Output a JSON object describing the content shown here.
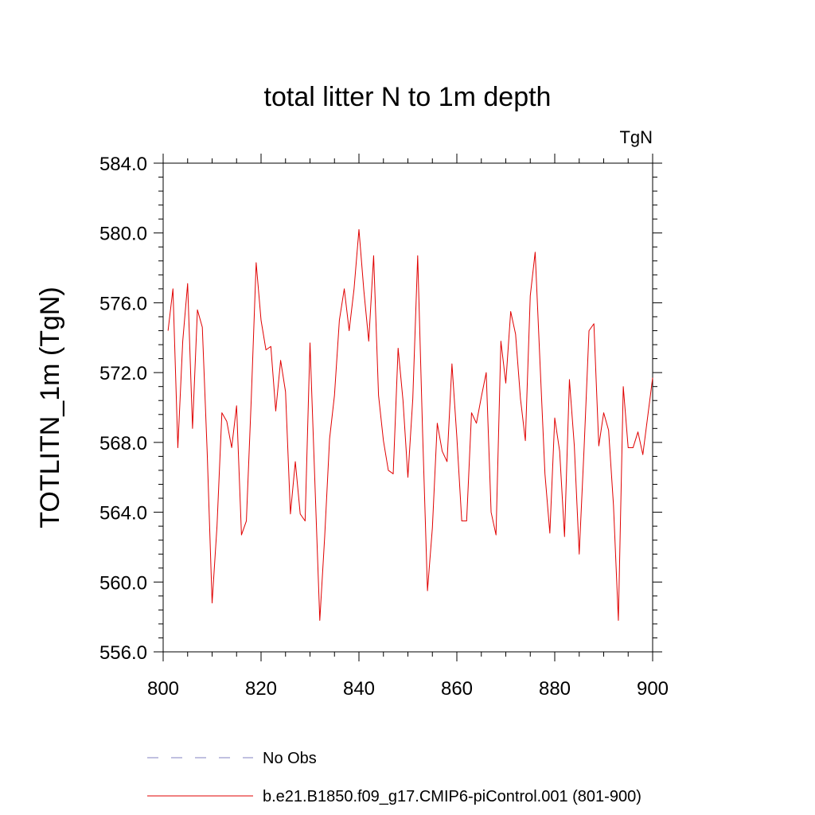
{
  "chart_data": {
    "type": "line",
    "title": "total litter N to 1m depth",
    "units_label": "TgN",
    "ylabel": "TOTLITN_1m  (TgN)",
    "xlabel": "",
    "xlim": [
      800,
      900
    ],
    "ylim": [
      556.0,
      584.0
    ],
    "x_ticks": [
      800,
      820,
      840,
      860,
      880,
      900
    ],
    "x_tick_labels": [
      "800",
      "820",
      "840",
      "860",
      "880",
      "900"
    ],
    "y_ticks": [
      556,
      560,
      564,
      568,
      572,
      576,
      580,
      584
    ],
    "y_tick_labels": [
      "556.0",
      "560.0",
      "564.0",
      "568.0",
      "572.0",
      "576.0",
      "580.0",
      "584.0"
    ],
    "grid": false,
    "legend_position": "bottom",
    "legend": [
      {
        "label": "No Obs",
        "color": "#8080c0",
        "style": "dashed"
      },
      {
        "label": "b.e21.B1850.f09_g17.CMIP6-piControl.001 (801-900)",
        "color": "#e00000",
        "style": "solid"
      }
    ],
    "series": [
      {
        "color": "#e00000",
        "x": [
          801,
          802,
          803,
          804,
          805,
          806,
          807,
          808,
          809,
          810,
          811,
          812,
          813,
          814,
          815,
          816,
          817,
          818,
          819,
          820,
          821,
          822,
          823,
          824,
          825,
          826,
          827,
          828,
          829,
          830,
          831,
          832,
          833,
          834,
          835,
          836,
          837,
          838,
          839,
          840,
          841,
          842,
          843,
          844,
          845,
          846,
          847,
          848,
          849,
          850,
          851,
          852,
          853,
          854,
          855,
          856,
          857,
          858,
          859,
          860,
          861,
          862,
          863,
          864,
          865,
          866,
          867,
          868,
          869,
          870,
          871,
          872,
          873,
          874,
          875,
          876,
          877,
          878,
          879,
          880,
          881,
          882,
          883,
          884,
          885,
          886,
          887,
          888,
          889,
          890,
          891,
          892,
          893,
          894,
          895,
          896,
          897,
          898,
          899,
          900
        ],
        "values": [
          574.4,
          576.8,
          567.7,
          573.8,
          577.1,
          568.8,
          575.6,
          574.6,
          567.4,
          558.8,
          563.2,
          569.7,
          569.2,
          567.7,
          570.1,
          562.7,
          563.5,
          570.5,
          578.3,
          575.0,
          573.3,
          573.5,
          569.8,
          572.7,
          570.9,
          563.9,
          566.9,
          563.9,
          563.5,
          573.7,
          565.7,
          557.8,
          562.6,
          568.2,
          570.7,
          575.0,
          576.8,
          574.4,
          576.8,
          580.2,
          576.7,
          573.8,
          578.7,
          570.7,
          568.1,
          566.4,
          566.2,
          573.4,
          570.4,
          566.0,
          570.5,
          578.7,
          568.6,
          559.5,
          563.1,
          569.1,
          567.5,
          566.9,
          572.5,
          568.3,
          563.5,
          563.5,
          569.7,
          569.1,
          570.6,
          572.0,
          564.0,
          562.7,
          573.8,
          571.4,
          575.5,
          574.2,
          570.5,
          568.1,
          576.4,
          578.9,
          572.5,
          566.2,
          562.8,
          569.4,
          567.5,
          562.6,
          571.6,
          567.8,
          561.6,
          567.7,
          574.4,
          574.8,
          567.8,
          569.7,
          568.7,
          564.4,
          557.8,
          571.2,
          567.7,
          567.7,
          568.6,
          567.3,
          569.5,
          571.7
        ]
      }
    ]
  }
}
